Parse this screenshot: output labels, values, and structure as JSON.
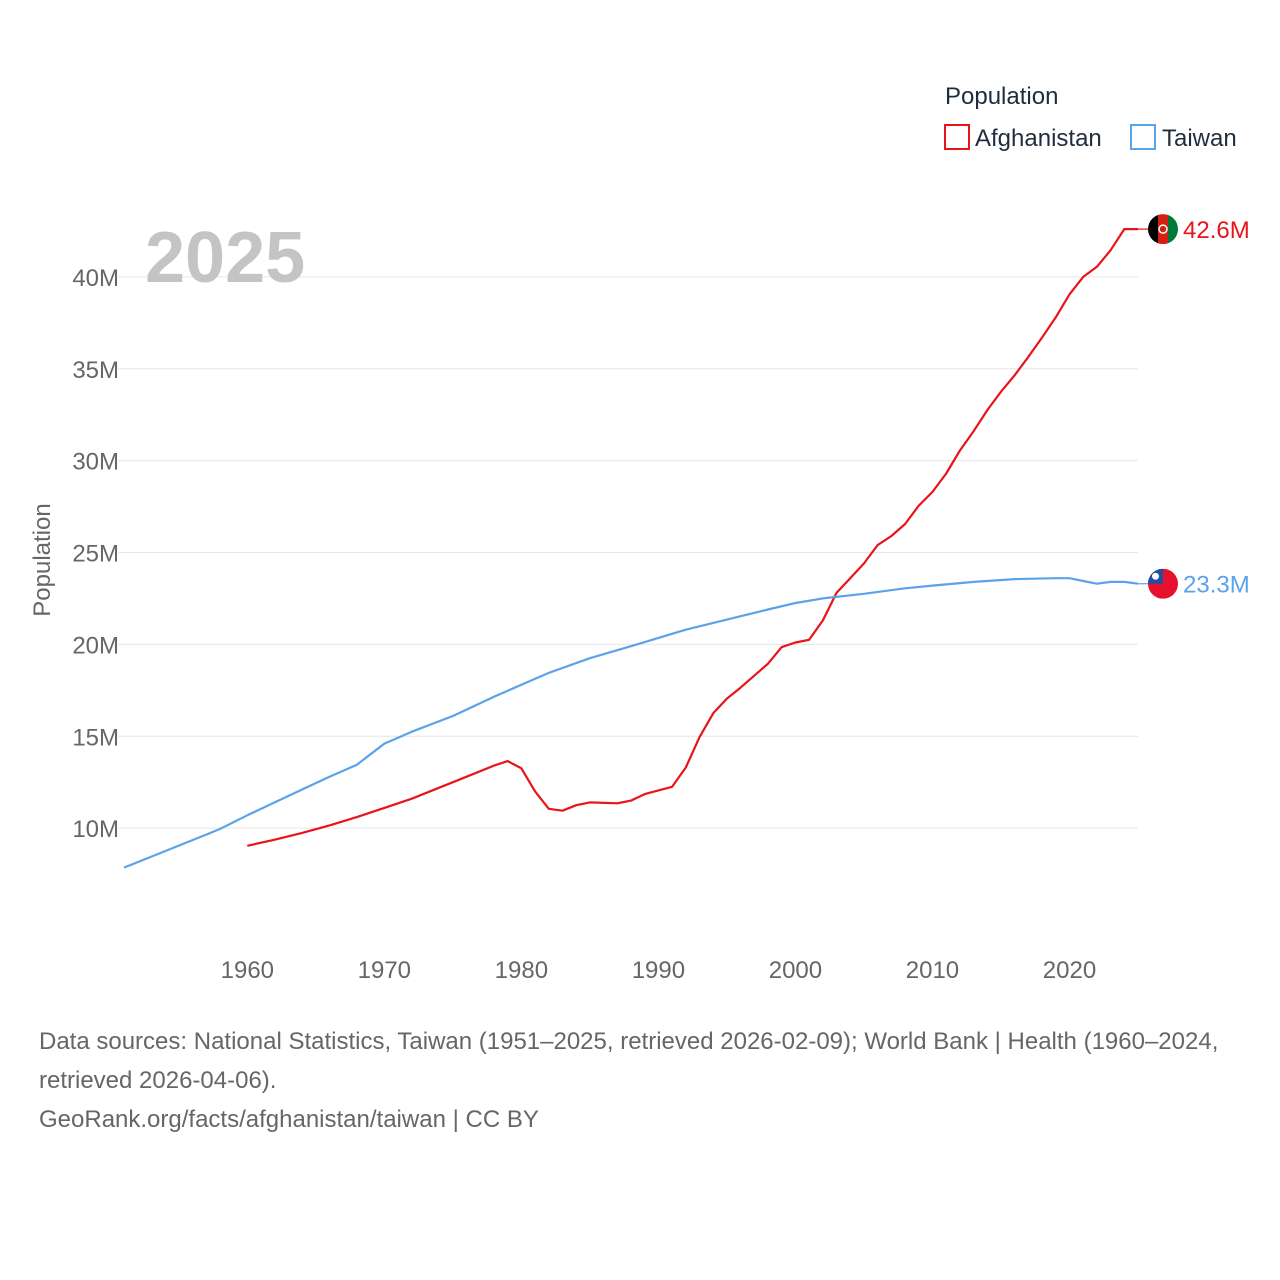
{
  "chart_data": {
    "type": "line",
    "year_label": "2025",
    "ylabel": "Population",
    "xlabel": "",
    "xlim": [
      1951,
      2025
    ],
    "ylim": [
      5000000,
      45000000
    ],
    "xticks": [
      {
        "value": 1960,
        "label": "1960"
      },
      {
        "value": 1970,
        "label": "1970"
      },
      {
        "value": 1980,
        "label": "1980"
      },
      {
        "value": 1990,
        "label": "1990"
      },
      {
        "value": 2000,
        "label": "2000"
      },
      {
        "value": 2010,
        "label": "2010"
      },
      {
        "value": 2020,
        "label": "2020"
      }
    ],
    "yticks": [
      {
        "value": 10000000,
        "label": "10M"
      },
      {
        "value": 15000000,
        "label": "15M"
      },
      {
        "value": 20000000,
        "label": "20M"
      },
      {
        "value": 25000000,
        "label": "25M"
      },
      {
        "value": 30000000,
        "label": "30M"
      },
      {
        "value": 35000000,
        "label": "35M"
      },
      {
        "value": 40000000,
        "label": "40M"
      }
    ],
    "legend": {
      "title": "Population",
      "position": "top-right"
    },
    "series": [
      {
        "name": "Afghanistan",
        "color": "#e8141a",
        "end_label": "42.6M",
        "flag": "afghanistan-flag-icon",
        "points": [
          [
            1960,
            9040000
          ],
          [
            1962,
            9370000
          ],
          [
            1964,
            9740000
          ],
          [
            1966,
            10150000
          ],
          [
            1968,
            10600000
          ],
          [
            1970,
            11100000
          ],
          [
            1972,
            11600000
          ],
          [
            1974,
            12200000
          ],
          [
            1976,
            12800000
          ],
          [
            1978,
            13400000
          ],
          [
            1979,
            13650000
          ],
          [
            1980,
            13250000
          ],
          [
            1981,
            12000000
          ],
          [
            1982,
            11050000
          ],
          [
            1983,
            10950000
          ],
          [
            1984,
            11250000
          ],
          [
            1985,
            11400000
          ],
          [
            1987,
            11350000
          ],
          [
            1988,
            11500000
          ],
          [
            1989,
            11850000
          ],
          [
            1991,
            12250000
          ],
          [
            1992,
            13300000
          ],
          [
            1993,
            14950000
          ],
          [
            1994,
            16250000
          ],
          [
            1995,
            17050000
          ],
          [
            1996,
            17650000
          ],
          [
            1998,
            18950000
          ],
          [
            1999,
            19850000
          ],
          [
            2000,
            20100000
          ],
          [
            2001,
            20250000
          ],
          [
            2002,
            21300000
          ],
          [
            2003,
            22800000
          ],
          [
            2004,
            23600000
          ],
          [
            2005,
            24400000
          ],
          [
            2006,
            25400000
          ],
          [
            2007,
            25900000
          ],
          [
            2008,
            26550000
          ],
          [
            2009,
            27550000
          ],
          [
            2010,
            28300000
          ],
          [
            2011,
            29300000
          ],
          [
            2012,
            30550000
          ],
          [
            2013,
            31600000
          ],
          [
            2014,
            32750000
          ],
          [
            2015,
            33750000
          ],
          [
            2016,
            34650000
          ],
          [
            2017,
            35650000
          ],
          [
            2018,
            36700000
          ],
          [
            2019,
            37800000
          ],
          [
            2020,
            39050000
          ],
          [
            2021,
            40000000
          ],
          [
            2022,
            40550000
          ],
          [
            2023,
            41450000
          ],
          [
            2024,
            42600000
          ],
          [
            2025,
            42600000
          ]
        ]
      },
      {
        "name": "Taiwan",
        "color": "#5ba3e8",
        "end_label": "23.3M",
        "flag": "taiwan-flag-icon",
        "points": [
          [
            1951,
            7850000
          ],
          [
            1953,
            8450000
          ],
          [
            1955,
            9050000
          ],
          [
            1957,
            9650000
          ],
          [
            1958,
            9950000
          ],
          [
            1960,
            10700000
          ],
          [
            1962,
            11400000
          ],
          [
            1964,
            12100000
          ],
          [
            1966,
            12800000
          ],
          [
            1968,
            13450000
          ],
          [
            1970,
            14600000
          ],
          [
            1972,
            15250000
          ],
          [
            1975,
            16100000
          ],
          [
            1978,
            17150000
          ],
          [
            1980,
            17800000
          ],
          [
            1982,
            18450000
          ],
          [
            1985,
            19250000
          ],
          [
            1988,
            19900000
          ],
          [
            1990,
            20350000
          ],
          [
            1992,
            20800000
          ],
          [
            1995,
            21350000
          ],
          [
            1998,
            21900000
          ],
          [
            2000,
            22250000
          ],
          [
            2002,
            22500000
          ],
          [
            2005,
            22750000
          ],
          [
            2008,
            23050000
          ],
          [
            2010,
            23200000
          ],
          [
            2013,
            23400000
          ],
          [
            2016,
            23550000
          ],
          [
            2019,
            23600000
          ],
          [
            2020,
            23600000
          ],
          [
            2021,
            23450000
          ],
          [
            2022,
            23300000
          ],
          [
            2023,
            23400000
          ],
          [
            2024,
            23400000
          ],
          [
            2025,
            23300000
          ]
        ]
      }
    ]
  },
  "footer": {
    "sources": "Data sources: National Statistics, Taiwan (1951–2025, retrieved 2026-02-09); World Bank | Health (1960–2024, retrieved 2026-04-06).",
    "credit": "GeoRank.org/facts/afghanistan/taiwan | CC BY"
  }
}
